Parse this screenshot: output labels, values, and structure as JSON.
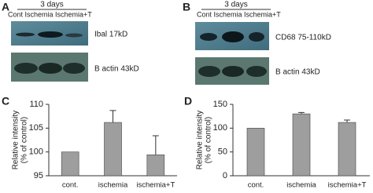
{
  "panels": [
    {
      "letter": "A",
      "period": "3 days",
      "lanes": "Cont Ischemia Ischemia+T",
      "blots": [
        "Ibal 17kD",
        "B actin 43kD"
      ]
    },
    {
      "letter": "B",
      "period": "3 days",
      "lanes": "Cont Ischemia Ischemia+T",
      "blots": [
        "CD68  75-110kD",
        "B actin 43kD"
      ]
    }
  ],
  "chart_data": [
    {
      "type": "bar",
      "letter": "C",
      "ylabel": [
        "Relative intensity",
        "(% of control)"
      ],
      "categories": [
        "cont.",
        "ischemia",
        "ischemia+T"
      ],
      "values": [
        100,
        106.2,
        99.4
      ],
      "errors": [
        0,
        2.5,
        4
      ],
      "color": "#9e9e9e",
      "ylim": [
        95,
        110
      ],
      "yticks": [
        95,
        100,
        105,
        110
      ]
    },
    {
      "type": "bar",
      "letter": "D",
      "ylabel": [
        "Relative intensity",
        "(% of control)"
      ],
      "categories": [
        "cont.",
        "ischemia",
        "ischemia+T"
      ],
      "values": [
        100,
        130,
        112
      ],
      "errors": [
        0,
        3,
        5
      ],
      "color": "#9e9e9e",
      "ylim": [
        0,
        150
      ],
      "yticks": [
        0,
        50,
        100,
        150
      ]
    }
  ]
}
